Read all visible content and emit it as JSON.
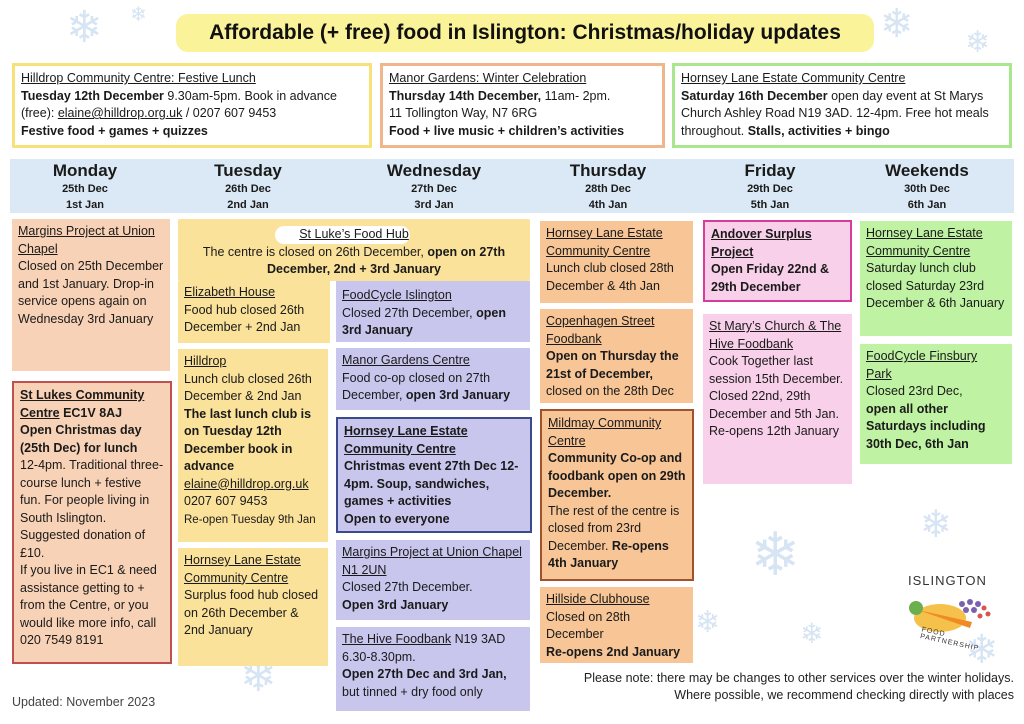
{
  "title": "Affordable (+ free) food in Islington: Christmas/holiday updates",
  "events": [
    {
      "heading": "Hilldrop Community Centre: Festive Lunch",
      "line1_bold": "Tuesday 12th December",
      "line1_rest": " 9.30am-5pm. Book in advance (free): ",
      "email": "elaine@hilldrop.org.uk",
      "phone": " / 0207 607 9453",
      "footer": "Festive food + games + quizzes",
      "border": "#f5e37a"
    },
    {
      "heading": "Manor Gardens: Winter Celebration",
      "line1_bold": "Thursday 14th December,",
      "line1_rest": " 11am- 2pm.",
      "address": "11 Tollington Way, N7 6RG",
      "footer": "Food + live music + children’s activities",
      "border": "#f0b58a"
    },
    {
      "heading": "Hornsey Lane Estate Community Centre",
      "line1_bold": "Saturday 16th December",
      "line1_rest": " open day event at St Marys Church Ashley Road N19 3AD. 12-4pm. Free hot meals throughout. ",
      "footer": "Stalls, activities + bingo",
      "border": "#a9e68d"
    }
  ],
  "days": [
    {
      "name": "Monday",
      "d1": "25th Dec",
      "d2": "1st Jan"
    },
    {
      "name": "Tuesday",
      "d1": "26th Dec",
      "d2": "2nd Jan"
    },
    {
      "name": "Wednesday",
      "d1": "27th Dec",
      "d2": "3rd Jan"
    },
    {
      "name": "Thursday",
      "d1": "28th Dec",
      "d2": "4th Jan"
    },
    {
      "name": "Friday",
      "d1": "29th Dec",
      "d2": "5th Jan"
    },
    {
      "name": "Weekends",
      "d1": "30th Dec",
      "d2": "6th Jan"
    }
  ],
  "monday": {
    "margins": {
      "h": "Margins Project at Union Chapel",
      "t": "Closed on 25th December and 1st January. Drop-in service opens again on Wednesday 3rd January"
    },
    "stlukes": {
      "h": "St Lukes Community Centre",
      "h2": " EC1V 8AJ",
      "b": "Open Christmas day (25th Dec) for lunch",
      "t": "12-4pm. Traditional three-course lunch + festive fun. For people living in South Islington. Suggested donation of £10.",
      "t2": "If you live in EC1 & need assistance getting to + from the Centre, or you would like more info, call 020 7549 8191"
    }
  },
  "stluke_hub": {
    "h": "St Luke’s Food Hub",
    "t": "The centre is closed on 26th December, ",
    "b": "open on 27th December, 2nd + 3rd January"
  },
  "tuesday": {
    "elizabeth": {
      "h": "Elizabeth House",
      "t": "Food hub closed 26th December + 2nd Jan"
    },
    "hilldrop": {
      "h": "Hilldrop",
      "t": "Lunch club closed 26th December & 2nd Jan",
      "b": "The last lunch club is on Tuesday 12th December book in advance",
      "email": "elaine@hilldrop.org.uk",
      "phone": "0207 607 9453",
      "reopen": "Re-open Tuesday 9th Jan"
    },
    "hornsey": {
      "h": "Hornsey Lane Estate Community Centre",
      "t": "Surplus food hub closed on 26th December & 2nd January"
    }
  },
  "wednesday": {
    "foodcycle": {
      "h": "FoodCycle Islington",
      "t": "Closed 27th December, ",
      "b": "open 3rd January"
    },
    "manor": {
      "h": "Manor Gardens Centre",
      "t": "Food co-op closed on 27th December, ",
      "b": "open 3rd January"
    },
    "hornsey": {
      "h": "Hornsey Lane Estate Community Centre",
      "b": "Christmas event 27th Dec 12-4pm. Soup, sandwiches, games + activities",
      "b2": "Open to everyone"
    },
    "margins": {
      "h": "Margins Project at Union Chapel N1 2UN",
      "t": "Closed 27th December.",
      "b": "Open 3rd January"
    },
    "hive": {
      "h": "The Hive Foodbank",
      "h2": " N19 3AD",
      "t": "6.30-8.30pm.",
      "b": "Open 27th Dec and 3rd Jan,",
      "t2": "but tinned + dry food only"
    }
  },
  "thursday": {
    "hornsey": {
      "h": "Hornsey Lane Estate Community Centre",
      "t": "Lunch club closed 28th December & 4th Jan"
    },
    "copenhagen": {
      "h": "Copenhagen Street Foodbank",
      "b": "Open on Thursday the 21st of December,",
      "t": "closed on the 28th Dec"
    },
    "mildmay": {
      "h": "Mildmay Community Centre",
      "b": "Community Co-op and foodbank open on 29th December.",
      "t": "The rest of the centre is closed from 23rd December. ",
      "b2": "Re-opens 4th January"
    },
    "hillside": {
      "h": "Hillside Clubhouse",
      "t": "Closed on 28th December",
      "b": "Re-opens 2nd January"
    }
  },
  "friday": {
    "andover": {
      "h": "Andover Surplus Project",
      "b": "Open Friday 22nd & 29th December"
    },
    "stmarys": {
      "h": "St Mary’s Church & The Hive Foodbank",
      "t": "Cook Together last session 15th December. Closed 22nd, 29th December and 5th Jan.",
      "t2": "Re-opens 12th January"
    }
  },
  "weekends": {
    "hornsey": {
      "h": "Hornsey Lane Estate Community Centre",
      "t": "Saturday lunch club closed Saturday 23rd December & 6th January"
    },
    "foodcycle": {
      "h": "FoodCycle Finsbury Park",
      "t": "Closed 23rd Dec,",
      "b": "open all other Saturdays including 30th Dec, 6th Jan"
    }
  },
  "logo": {
    "top": "ISLINGTON",
    "bottom": "FOOD PARTNERSHIP"
  },
  "note": "Please note: there may be changes to other services over the winter holidays. Where possible, we recommend checking directly with places",
  "updated": "Updated: November 2023",
  "colors": {
    "red_border": "#c0504d",
    "navy_border": "#3b4a8c",
    "brown_border": "#a0522d",
    "magenta_border": "#d63c9a"
  }
}
